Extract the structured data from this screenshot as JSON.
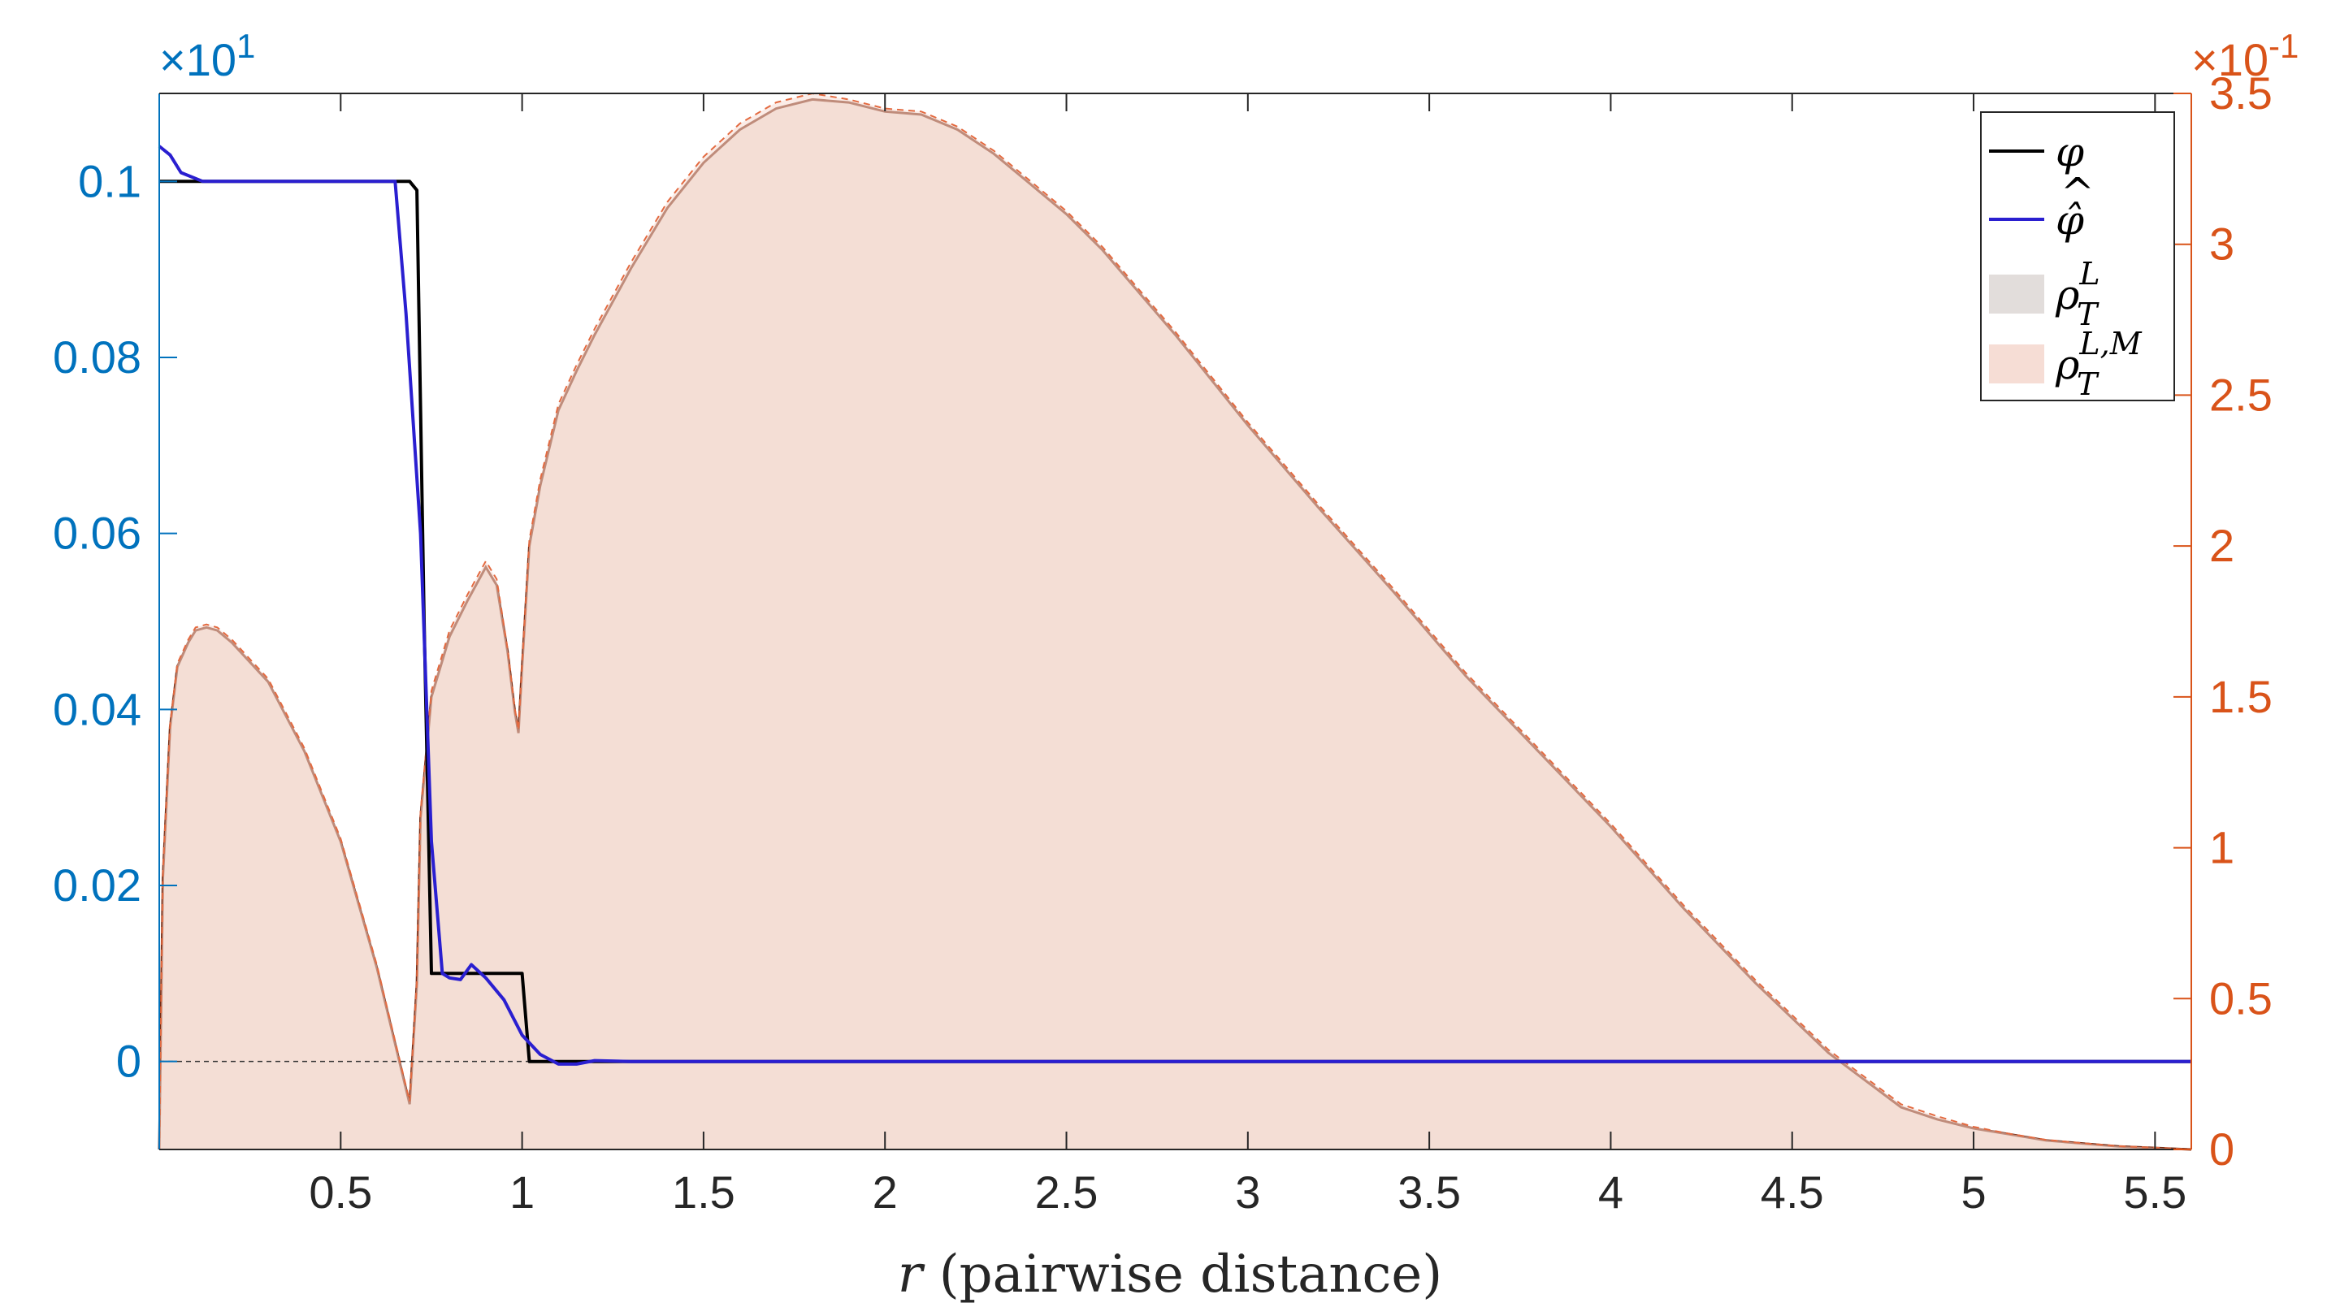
{
  "chart_data": {
    "type": "area",
    "title": "",
    "xlabel": "r (pairwise distance)",
    "xlabel_var": "r",
    "xlabel_rest": " (pairwise distance)",
    "xlim": [
      0,
      5.6
    ],
    "x_ticks": [
      0.5,
      1,
      1.5,
      2,
      2.5,
      3,
      3.5,
      4,
      4.5,
      5,
      5.5
    ],
    "x_tick_labels": [
      "0.5",
      "1",
      "1.5",
      "2",
      "2.5",
      "3",
      "3.5",
      "4",
      "4.5",
      "5",
      "5.5"
    ],
    "y_left": {
      "ylim": [
        -0.01,
        0.11
      ],
      "ticks": [
        0,
        0.02,
        0.04,
        0.06,
        0.08,
        0.1
      ],
      "tick_labels": [
        "0",
        "0.02",
        "0.04",
        "0.06",
        "0.08",
        "0.1"
      ],
      "exponent_label": "×10",
      "exponent": "1",
      "color": "#0072BD"
    },
    "y_right": {
      "ylim": [
        0,
        3.5
      ],
      "ticks": [
        0,
        0.5,
        1,
        1.5,
        2,
        2.5,
        3,
        3.5
      ],
      "tick_labels": [
        "0",
        "0.5",
        "1",
        "1.5",
        "2",
        "2.5",
        "3",
        "3.5"
      ],
      "exponent_label": "×10",
      "exponent": "-1",
      "color": "#D95319"
    },
    "legend_position": "top-right",
    "legend": [
      {
        "label": "φ",
        "type": "line",
        "color": "#000000"
      },
      {
        "label": "φ̂",
        "type": "line",
        "color": "#2A1FD0"
      },
      {
        "label": "ρ",
        "sup": "L",
        "sub": "T",
        "type": "patch",
        "color": "#E2DDDB"
      },
      {
        "label": "ρ",
        "sup": "L,M",
        "sub": "T",
        "type": "patch",
        "color": "#F6DDD5"
      }
    ],
    "series": [
      {
        "name": "φ",
        "axis": "left",
        "color": "#000000",
        "x": [
          0,
          0.68,
          0.69,
          0.71,
          0.73,
          0.75,
          0.76,
          1.0,
          1.02,
          1.1,
          5.6
        ],
        "y": [
          0.1,
          0.1,
          0.1,
          0.099,
          0.05,
          0.01,
          0.01,
          0.01,
          0.0,
          0.0,
          0.0
        ]
      },
      {
        "name": "φ̂",
        "axis": "left",
        "color": "#2A1FD0",
        "x": [
          0,
          0.03,
          0.06,
          0.12,
          0.3,
          0.6,
          0.62,
          0.65,
          0.68,
          0.72,
          0.75,
          0.78,
          0.8,
          0.83,
          0.86,
          0.9,
          0.95,
          1.0,
          1.05,
          1.1,
          1.15,
          1.2,
          1.3,
          1.5,
          5.6
        ],
        "y": [
          0.104,
          0.103,
          0.101,
          0.1,
          0.1,
          0.1,
          0.1,
          0.1,
          0.085,
          0.06,
          0.025,
          0.01,
          0.0095,
          0.0093,
          0.011,
          0.0095,
          0.007,
          0.003,
          0.0008,
          -0.0003,
          -0.0003,
          0.0001,
          0.0,
          0.0,
          0.0
        ]
      },
      {
        "name": "ρ_T^L",
        "axis": "right",
        "color": "#7A2A10",
        "fill": "#EEDCD3",
        "x": [
          0,
          0.01,
          0.03,
          0.05,
          0.08,
          0.1,
          0.13,
          0.16,
          0.2,
          0.3,
          0.4,
          0.5,
          0.6,
          0.65,
          0.69,
          0.71,
          0.72,
          0.75,
          0.8,
          0.85,
          0.9,
          0.93,
          0.96,
          0.98,
          0.99,
          1.0,
          1.02,
          1.05,
          1.1,
          1.15,
          1.2,
          1.3,
          1.4,
          1.5,
          1.6,
          1.7,
          1.8,
          1.9,
          2.0,
          2.1,
          2.2,
          2.3,
          2.4,
          2.5,
          2.6,
          2.7,
          2.8,
          2.9,
          3.0,
          3.2,
          3.4,
          3.6,
          3.8,
          4.0,
          4.2,
          4.4,
          4.6,
          4.8,
          4.9,
          5.0,
          5.1,
          5.2,
          5.3,
          5.4,
          5.5,
          5.6
        ],
        "y": [
          0.0,
          0.9,
          1.4,
          1.6,
          1.68,
          1.72,
          1.73,
          1.72,
          1.68,
          1.55,
          1.32,
          1.02,
          0.6,
          0.35,
          0.15,
          0.55,
          1.1,
          1.5,
          1.7,
          1.82,
          1.93,
          1.87,
          1.65,
          1.45,
          1.38,
          1.6,
          2.0,
          2.2,
          2.45,
          2.58,
          2.7,
          2.92,
          3.12,
          3.27,
          3.38,
          3.45,
          3.48,
          3.47,
          3.44,
          3.43,
          3.38,
          3.3,
          3.2,
          3.1,
          2.98,
          2.84,
          2.7,
          2.55,
          2.4,
          2.12,
          1.85,
          1.57,
          1.32,
          1.07,
          0.8,
          0.55,
          0.32,
          0.14,
          0.1,
          0.07,
          0.05,
          0.03,
          0.02,
          0.01,
          0.005,
          0.0
        ]
      },
      {
        "name": "ρ_T^{L,M}",
        "axis": "right",
        "color": "#E36A40",
        "fill": "#F7DCD4",
        "x": [
          0,
          0.01,
          0.03,
          0.05,
          0.08,
          0.1,
          0.13,
          0.16,
          0.2,
          0.3,
          0.4,
          0.5,
          0.6,
          0.65,
          0.69,
          0.71,
          0.72,
          0.75,
          0.8,
          0.85,
          0.9,
          0.93,
          0.96,
          0.98,
          0.99,
          1.0,
          1.02,
          1.05,
          1.1,
          1.15,
          1.2,
          1.3,
          1.4,
          1.5,
          1.6,
          1.7,
          1.8,
          1.9,
          2.0,
          2.1,
          2.2,
          2.3,
          2.4,
          2.5,
          2.6,
          2.7,
          2.8,
          2.9,
          3.0,
          3.2,
          3.4,
          3.6,
          3.8,
          4.0,
          4.2,
          4.4,
          4.6,
          4.8,
          4.9,
          5.0,
          5.1,
          5.2,
          5.3,
          5.4,
          5.5,
          5.6
        ],
        "y": [
          0.0,
          0.92,
          1.41,
          1.61,
          1.69,
          1.73,
          1.74,
          1.73,
          1.69,
          1.56,
          1.33,
          1.03,
          0.61,
          0.36,
          0.16,
          0.56,
          1.12,
          1.52,
          1.72,
          1.84,
          1.95,
          1.89,
          1.66,
          1.46,
          1.39,
          1.61,
          2.02,
          2.22,
          2.47,
          2.6,
          2.72,
          2.94,
          3.14,
          3.29,
          3.4,
          3.47,
          3.5,
          3.48,
          3.45,
          3.44,
          3.39,
          3.31,
          3.21,
          3.11,
          2.99,
          2.85,
          2.71,
          2.56,
          2.41,
          2.13,
          1.86,
          1.58,
          1.33,
          1.08,
          0.81,
          0.56,
          0.33,
          0.15,
          0.11,
          0.075,
          0.052,
          0.032,
          0.021,
          0.011,
          0.006,
          0.0
        ]
      }
    ]
  }
}
